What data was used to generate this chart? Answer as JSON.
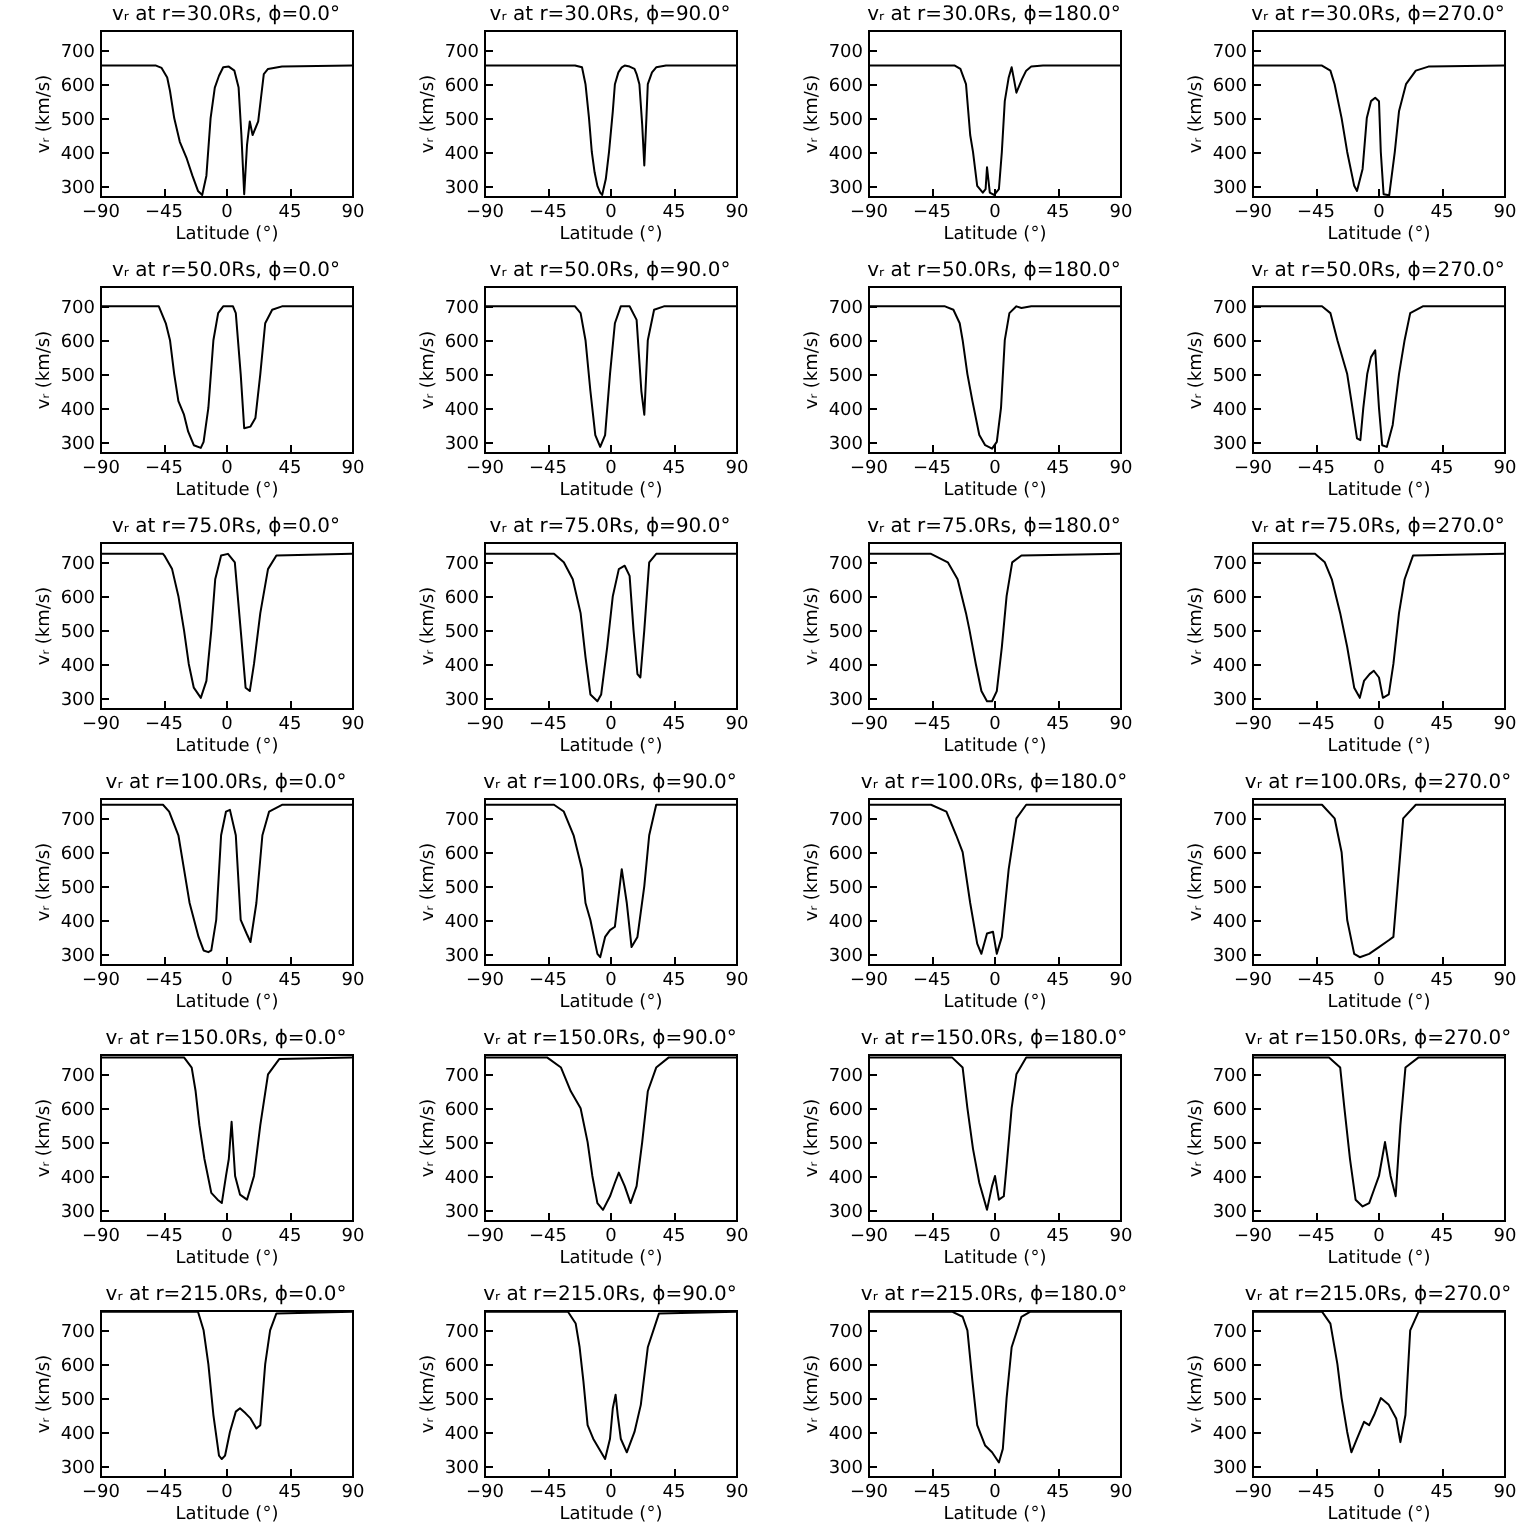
{
  "chart_data": [
    {
      "type": "line",
      "title": "vᵣ at r=30.0Rs, ϕ=0.0°",
      "xlabel": "Latitude (°)",
      "ylabel": "vᵣ (km/s)",
      "xlim": [
        -90,
        90
      ],
      "xticks": [
        -90,
        -45,
        0,
        45,
        90
      ],
      "ylim": [
        270,
        760
      ],
      "yticks": [
        300,
        400,
        500,
        600,
        700
      ],
      "x": [
        -90,
        -50,
        -46,
        -42,
        -40,
        -37,
        -33,
        -28,
        -24,
        -20,
        -17,
        -14,
        -11,
        -8,
        -5,
        -2,
        2,
        6,
        9,
        11,
        13,
        15,
        17,
        19,
        21,
        23,
        25,
        27,
        30,
        40,
        90
      ],
      "series": [
        {
          "color": "#000000",
          "values": [
            655,
            655,
            648,
            620,
            580,
            500,
            430,
            380,
            330,
            285,
            273,
            330,
            500,
            590,
            625,
            650,
            652,
            640,
            590,
            450,
            275,
            420,
            490,
            450,
            470,
            490,
            560,
            630,
            645,
            652,
            655
          ]
        }
      ]
    },
    {
      "type": "line",
      "title": "vᵣ at r=30.0Rs, ϕ=90.0°",
      "xlabel": "Latitude (°)",
      "ylabel": "vᵣ (km/s)",
      "xlim": [
        -90,
        90
      ],
      "xticks": [
        -90,
        -45,
        0,
        45,
        90
      ],
      "ylim": [
        270,
        760
      ],
      "yticks": [
        300,
        400,
        500,
        600,
        700
      ],
      "x": [
        -90,
        -25,
        -20,
        -17.5,
        -15,
        -13,
        -11,
        -9,
        -7,
        -5.6,
        -3,
        -0.7,
        2,
        3.5,
        6,
        8.4,
        10.5,
        14,
        17.5,
        19,
        21,
        23,
        24.5,
        26,
        27,
        30,
        33,
        40,
        90
      ],
      "series": [
        {
          "color": "#000000",
          "values": [
            655,
            655,
            650,
            600,
            500,
            400,
            340,
            300,
            280,
            273,
            320,
            400,
            520,
            600,
            635,
            650,
            655,
            652,
            645,
            630,
            600,
            480,
            360,
            500,
            600,
            635,
            650,
            655,
            655
          ]
        }
      ]
    },
    {
      "type": "line",
      "title": "vᵣ at r=30.0Rs, ϕ=180.0°",
      "xlabel": "Latitude (°)",
      "ylabel": "vᵣ (km/s)",
      "xlim": [
        -90,
        90
      ],
      "xticks": [
        -90,
        -45,
        0,
        45,
        90
      ],
      "ylim": [
        270,
        760
      ],
      "yticks": [
        300,
        400,
        500,
        600,
        700
      ],
      "x": [
        -90,
        -28,
        -24,
        -20,
        -17,
        -15,
        -12,
        -8,
        -6,
        -5,
        -3,
        0,
        3.5,
        5.6,
        7.7,
        10.5,
        12.6,
        14,
        16,
        18,
        20,
        23,
        26.6,
        35,
        90
      ],
      "series": [
        {
          "color": "#000000",
          "values": [
            655,
            655,
            645,
            600,
            450,
            400,
            300,
            280,
            290,
            355,
            280,
            273,
            290,
            400,
            550,
            620,
            650,
            620,
            575,
            595,
            615,
            640,
            652,
            655,
            655
          ]
        }
      ]
    },
    {
      "type": "line",
      "title": "vᵣ at r=30.0Rs, ϕ=270.0°",
      "xlabel": "Latitude (°)",
      "ylabel": "vᵣ (km/s)",
      "xlim": [
        -90,
        90
      ],
      "xticks": [
        -90,
        -45,
        0,
        45,
        90
      ],
      "ylim": [
        270,
        760
      ],
      "yticks": [
        300,
        400,
        500,
        600,
        700
      ],
      "x": [
        -90,
        -40,
        -34,
        -31,
        -26,
        -22,
        -17,
        -15,
        -11,
        -8,
        -5,
        -2,
        0.7,
        2,
        4,
        8,
        12,
        15,
        20,
        27,
        36,
        90
      ],
      "series": [
        {
          "color": "#000000",
          "values": [
            655,
            655,
            640,
            600,
            500,
            400,
            300,
            285,
            350,
            500,
            550,
            560,
            550,
            400,
            275,
            272,
            400,
            520,
            600,
            640,
            652,
            655
          ]
        }
      ]
    },
    {
      "type": "line",
      "title": "vᵣ at r=50.0Rs, ϕ=0.0°",
      "xlabel": "Latitude (°)",
      "ylabel": "vᵣ (km/s)",
      "xlim": [
        -90,
        90
      ],
      "xticks": [
        -90,
        -45,
        0,
        45,
        90
      ],
      "ylim": [
        270,
        760
      ],
      "yticks": [
        300,
        400,
        500,
        600,
        700
      ],
      "x": [
        -90,
        -48,
        -43,
        -40,
        -37,
        -34,
        -30,
        -27,
        -23,
        -18,
        -16,
        -12.6,
        -9,
        -5.6,
        -2,
        5,
        7,
        10.5,
        13,
        17.5,
        21,
        24.5,
        28,
        33,
        40,
        90
      ],
      "series": [
        {
          "color": "#000000",
          "values": [
            700,
            700,
            650,
            600,
            500,
            420,
            380,
            330,
            290,
            282,
            300,
            400,
            600,
            680,
            700,
            700,
            680,
            500,
            340,
            345,
            370,
            500,
            650,
            690,
            700,
            700
          ]
        }
      ]
    },
    {
      "type": "line",
      "title": "vᵣ at r=50.0Rs, ϕ=90.0°",
      "xlabel": "Latitude (°)",
      "ylabel": "vᵣ (km/s)",
      "xlim": [
        -90,
        90
      ],
      "xticks": [
        -90,
        -45,
        0,
        45,
        90
      ],
      "ylim": [
        270,
        760
      ],
      "yticks": [
        300,
        400,
        500,
        600,
        700
      ],
      "x": [
        -90,
        -25,
        -21,
        -17.5,
        -14,
        -10.5,
        -7,
        -3.5,
        0,
        3.5,
        7.7,
        14,
        19,
        22.4,
        24.5,
        27,
        31.5,
        38.5,
        90
      ],
      "series": [
        {
          "color": "#000000",
          "values": [
            700,
            700,
            680,
            600,
            450,
            320,
            285,
            320,
            500,
            650,
            700,
            700,
            660,
            450,
            380,
            600,
            690,
            700,
            700
          ]
        }
      ]
    },
    {
      "type": "line",
      "title": "vᵣ at r=50.0Rs, ϕ=180.0°",
      "xlabel": "Latitude (°)",
      "ylabel": "vᵣ (km/s)",
      "xlim": [
        -90,
        90
      ],
      "xticks": [
        -90,
        -45,
        0,
        45,
        90
      ],
      "ylim": [
        270,
        760
      ],
      "yticks": [
        300,
        400,
        500,
        600,
        700
      ],
      "x": [
        -90,
        -35,
        -29,
        -24.5,
        -22.4,
        -19,
        -15.4,
        -10.5,
        -6.3,
        -1.4,
        2,
        5,
        7.7,
        11,
        16,
        19.6,
        26.6,
        90
      ],
      "series": [
        {
          "color": "#000000",
          "values": [
            700,
            700,
            690,
            650,
            600,
            500,
            420,
            320,
            290,
            280,
            300,
            400,
            600,
            680,
            700,
            695,
            700,
            700
          ]
        }
      ]
    },
    {
      "type": "line",
      "title": "vᵣ at r=50.0Rs, ϕ=270.0°",
      "xlabel": "Latitude (°)",
      "ylabel": "vᵣ (km/s)",
      "xlim": [
        -90,
        90
      ],
      "xticks": [
        -90,
        -45,
        0,
        45,
        90
      ],
      "ylim": [
        270,
        760
      ],
      "yticks": [
        300,
        400,
        500,
        600,
        700
      ],
      "x": [
        -90,
        -40,
        -34,
        -29,
        -22,
        -19,
        -15,
        -12.6,
        -10.5,
        -7.7,
        -5,
        -2,
        0.7,
        3,
        6.3,
        10.5,
        15,
        19,
        23,
        32,
        90
      ],
      "series": [
        {
          "color": "#000000",
          "values": [
            700,
            700,
            680,
            600,
            500,
            420,
            310,
            305,
            400,
            500,
            550,
            570,
            400,
            290,
            285,
            350,
            500,
            600,
            680,
            700,
            700
          ]
        }
      ]
    },
    {
      "type": "line",
      "title": "vᵣ at r=75.0Rs, ϕ=0.0°",
      "xlabel": "Latitude (°)",
      "ylabel": "vᵣ (km/s)",
      "xlim": [
        -90,
        90
      ],
      "xticks": [
        -90,
        -45,
        0,
        45,
        90
      ],
      "ylim": [
        270,
        760
      ],
      "yticks": [
        300,
        400,
        500,
        600,
        700
      ],
      "x": [
        -90,
        -45,
        -44,
        -38.5,
        -34,
        -30,
        -26.6,
        -23,
        -18,
        -14,
        -10.5,
        -7.7,
        -3.5,
        1.4,
        6.3,
        10.5,
        14,
        17,
        20,
        24.5,
        30,
        36,
        90
      ],
      "series": [
        {
          "color": "#000000",
          "values": [
            725,
            725,
            720,
            680,
            600,
            500,
            400,
            330,
            300,
            350,
            500,
            650,
            720,
            725,
            700,
            500,
            330,
            320,
            400,
            550,
            680,
            720,
            725
          ]
        }
      ]
    },
    {
      "type": "line",
      "title": "vᵣ at r=75.0Rs, ϕ=90.0°",
      "xlabel": "Latitude (°)",
      "ylabel": "vᵣ (km/s)",
      "xlim": [
        -90,
        90
      ],
      "xticks": [
        -90,
        -45,
        0,
        45,
        90
      ],
      "ylim": [
        270,
        760
      ],
      "yticks": [
        300,
        400,
        500,
        600,
        700
      ],
      "x": [
        -90,
        -40,
        -33,
        -26.6,
        -21,
        -17.5,
        -14,
        -9,
        -6.3,
        -2,
        2,
        6.3,
        10.5,
        14,
        16.8,
        19.6,
        21.7,
        24.5,
        28,
        33,
        90
      ],
      "series": [
        {
          "color": "#000000",
          "values": [
            725,
            725,
            700,
            650,
            550,
            420,
            310,
            290,
            310,
            450,
            600,
            680,
            690,
            660,
            500,
            370,
            360,
            500,
            700,
            725,
            725
          ]
        }
      ]
    },
    {
      "type": "line",
      "title": "vᵣ at r=75.0Rs, ϕ=180.0°",
      "xlabel": "Latitude (°)",
      "ylabel": "vᵣ (km/s)",
      "xlim": [
        -90,
        90
      ],
      "xticks": [
        -90,
        -45,
        0,
        45,
        90
      ],
      "ylim": [
        270,
        760
      ],
      "yticks": [
        300,
        400,
        500,
        600,
        700
      ],
      "x": [
        -90,
        -45,
        -33,
        -26,
        -20,
        -17.5,
        -13,
        -9,
        -5,
        -1.4,
        2,
        5.6,
        9,
        13,
        19.6,
        90
      ],
      "series": [
        {
          "color": "#000000",
          "values": [
            725,
            725,
            700,
            650,
            550,
            500,
            400,
            320,
            290,
            290,
            320,
            450,
            600,
            700,
            720,
            725
          ]
        }
      ]
    },
    {
      "type": "line",
      "title": "vᵣ at r=75.0Rs, ϕ=270.0°",
      "xlabel": "Latitude (°)",
      "ylabel": "vᵣ (km/s)",
      "xlim": [
        -90,
        90
      ],
      "xticks": [
        -90,
        -45,
        0,
        45,
        90
      ],
      "ylim": [
        270,
        760
      ],
      "yticks": [
        300,
        400,
        500,
        600,
        700
      ],
      "x": [
        -90,
        -45,
        -38,
        -33,
        -27,
        -22,
        -17,
        -13,
        -10,
        -6,
        -3,
        0.7,
        3.5,
        7.7,
        11,
        15,
        19,
        25,
        90
      ],
      "series": [
        {
          "color": "#000000",
          "values": [
            725,
            725,
            700,
            650,
            550,
            450,
            330,
            300,
            350,
            370,
            380,
            360,
            300,
            310,
            400,
            550,
            650,
            720,
            725
          ]
        }
      ]
    },
    {
      "type": "line",
      "title": "vᵣ at r=100.0Rs, ϕ=0.0°",
      "xlabel": "Latitude (°)",
      "ylabel": "vᵣ (km/s)",
      "xlim": [
        -90,
        90
      ],
      "xticks": [
        -90,
        -45,
        0,
        45,
        90
      ],
      "ylim": [
        270,
        760
      ],
      "yticks": [
        300,
        400,
        500,
        600,
        700
      ],
      "x": [
        -90,
        -45,
        -40.6,
        -34,
        -30,
        -26,
        -19.6,
        -16,
        -12.6,
        -10.5,
        -7,
        -3.5,
        0,
        2.8,
        7,
        10.5,
        14.7,
        17.5,
        21.7,
        26,
        30.8,
        40,
        90
      ],
      "series": [
        {
          "color": "#000000",
          "values": [
            740,
            740,
            720,
            650,
            550,
            450,
            350,
            310,
            305,
            310,
            400,
            650,
            720,
            725,
            650,
            400,
            360,
            335,
            450,
            650,
            720,
            740,
            740
          ]
        }
      ]
    },
    {
      "type": "line",
      "title": "vᵣ at r=100.0Rs, ϕ=90.0°",
      "xlabel": "Latitude (°)",
      "ylabel": "vᵣ (km/s)",
      "xlim": [
        -90,
        90
      ],
      "xticks": [
        -90,
        -45,
        0,
        45,
        90
      ],
      "ylim": [
        270,
        760
      ],
      "yticks": [
        300,
        400,
        500,
        600,
        700
      ],
      "x": [
        -90,
        -40,
        -33,
        -26,
        -20,
        -17.5,
        -14,
        -9,
        -7,
        -3.5,
        0,
        3.5,
        8.4,
        12,
        15.4,
        19.6,
        24.5,
        28,
        33,
        90
      ],
      "series": [
        {
          "color": "#000000",
          "values": [
            740,
            740,
            720,
            650,
            550,
            450,
            400,
            300,
            290,
            350,
            370,
            380,
            550,
            450,
            320,
            350,
            500,
            650,
            740,
            740
          ]
        }
      ]
    },
    {
      "type": "line",
      "title": "vᵣ at r=100.0Rs, ϕ=180.0°",
      "xlabel": "Latitude (°)",
      "ylabel": "vᵣ (km/s)",
      "xlim": [
        -90,
        90
      ],
      "xticks": [
        -90,
        -45,
        0,
        45,
        90
      ],
      "ylim": [
        270,
        760
      ],
      "yticks": [
        300,
        400,
        500,
        600,
        700
      ],
      "x": [
        -90,
        -45,
        -34,
        -27,
        -22.4,
        -17,
        -12,
        -9,
        -5,
        -0.7,
        2,
        5.6,
        10.5,
        16,
        23,
        90
      ],
      "series": [
        {
          "color": "#000000",
          "values": [
            740,
            740,
            720,
            650,
            600,
            450,
            330,
            300,
            360,
            365,
            300,
            350,
            550,
            700,
            740,
            740
          ]
        }
      ]
    },
    {
      "type": "line",
      "title": "vᵣ at r=100.0Rs, ϕ=270.0°",
      "xlabel": "Latitude (°)",
      "ylabel": "vᵣ (km/s)",
      "xlim": [
        -90,
        90
      ],
      "xticks": [
        -90,
        -45,
        0,
        45,
        90
      ],
      "ylim": [
        270,
        760
      ],
      "yticks": [
        300,
        400,
        500,
        600,
        700
      ],
      "x": [
        -90,
        -40,
        -31,
        -26,
        -22,
        -17,
        -13,
        -6.3,
        0.7,
        7.7,
        11,
        15,
        18,
        27,
        90
      ],
      "series": [
        {
          "color": "#000000",
          "values": [
            740,
            740,
            700,
            600,
            400,
            300,
            290,
            300,
            320,
            340,
            350,
            550,
            700,
            740,
            740
          ]
        }
      ]
    },
    {
      "type": "line",
      "title": "vᵣ at r=150.0Rs, ϕ=0.0°",
      "xlabel": "Latitude (°)",
      "ylabel": "vᵣ (km/s)",
      "xlim": [
        -90,
        90
      ],
      "xticks": [
        -90,
        -45,
        0,
        45,
        90
      ],
      "ylim": [
        270,
        760
      ],
      "yticks": [
        300,
        400,
        500,
        600,
        700
      ],
      "x": [
        -90,
        -30,
        -24.5,
        -21.7,
        -19,
        -15.4,
        -10.5,
        -6,
        -3,
        0,
        2,
        4,
        6.5,
        10,
        15,
        20,
        24.5,
        30,
        38,
        90
      ],
      "series": [
        {
          "color": "#000000",
          "values": [
            750,
            750,
            720,
            650,
            550,
            450,
            350,
            330,
            320,
            400,
            450,
            560,
            400,
            345,
            330,
            400,
            550,
            700,
            745,
            750
          ]
        }
      ]
    },
    {
      "type": "line",
      "title": "vᵣ at r=150.0Rs, ϕ=90.0°",
      "xlabel": "Latitude (°)",
      "ylabel": "vᵣ (km/s)",
      "xlim": [
        -90,
        90
      ],
      "xticks": [
        -90,
        -45,
        0,
        45,
        90
      ],
      "ylim": [
        270,
        760
      ],
      "yticks": [
        300,
        400,
        500,
        600,
        700
      ],
      "x": [
        -90,
        -45,
        -35,
        -28,
        -21,
        -16,
        -12.6,
        -9,
        -5,
        0,
        3.5,
        6.3,
        10.5,
        14.7,
        19,
        23,
        27,
        33,
        42,
        90
      ],
      "series": [
        {
          "color": "#000000",
          "values": [
            750,
            750,
            720,
            650,
            600,
            500,
            400,
            320,
            300,
            340,
            380,
            410,
            370,
            320,
            370,
            500,
            650,
            720,
            750,
            750
          ]
        }
      ]
    },
    {
      "type": "line",
      "title": "vᵣ at r=150.0Rs, ϕ=180.0°",
      "xlabel": "Latitude (°)",
      "ylabel": "vᵣ (km/s)",
      "xlim": [
        -90,
        90
      ],
      "xticks": [
        -90,
        -45,
        0,
        45,
        90
      ],
      "ylim": [
        270,
        760
      ],
      "yticks": [
        300,
        400,
        500,
        600,
        700
      ],
      "x": [
        -90,
        -30,
        -22.4,
        -19,
        -15,
        -10.5,
        -5,
        -1.4,
        0.7,
        3.5,
        7,
        9,
        12.6,
        16,
        23,
        90
      ],
      "series": [
        {
          "color": "#000000",
          "values": [
            750,
            750,
            720,
            600,
            480,
            380,
            300,
            370,
            400,
            330,
            340,
            430,
            600,
            700,
            750,
            750
          ]
        }
      ]
    },
    {
      "type": "line",
      "title": "vᵣ at r=150.0Rs, ϕ=270.0°",
      "xlabel": "Latitude (°)",
      "ylabel": "vᵣ (km/s)",
      "xlim": [
        -90,
        90
      ],
      "xticks": [
        -90,
        -45,
        0,
        45,
        90
      ],
      "ylim": [
        270,
        760
      ],
      "yticks": [
        300,
        400,
        500,
        600,
        700
      ],
      "x": [
        -90,
        -35,
        -27,
        -24,
        -20,
        -16,
        -11,
        -6.3,
        -2.8,
        0.7,
        5,
        9,
        12.6,
        16,
        19.6,
        29,
        90
      ],
      "series": [
        {
          "color": "#000000",
          "values": [
            750,
            750,
            720,
            600,
            450,
            330,
            310,
            320,
            360,
            400,
            500,
            400,
            340,
            550,
            720,
            750,
            750
          ]
        }
      ]
    },
    {
      "type": "line",
      "title": "vᵣ at r=215.0Rs, ϕ=0.0°",
      "xlabel": "Latitude (°)",
      "ylabel": "vᵣ (km/s)",
      "xlim": [
        -90,
        90
      ],
      "xticks": [
        -90,
        -45,
        0,
        45,
        90
      ],
      "ylim": [
        270,
        760
      ],
      "yticks": [
        300,
        400,
        500,
        600,
        700
      ],
      "x": [
        -90,
        -20,
        -16,
        -12.6,
        -9,
        -5,
        -3,
        -0.7,
        2.8,
        7,
        10,
        14,
        17.5,
        21.7,
        24.5,
        28,
        31.5,
        36,
        90
      ],
      "series": [
        {
          "color": "#000000",
          "values": [
            755,
            755,
            700,
            600,
            450,
            330,
            320,
            330,
            400,
            460,
            470,
            455,
            440,
            410,
            420,
            600,
            700,
            750,
            755
          ]
        }
      ]
    },
    {
      "type": "line",
      "title": "vᵣ at r=215.0Rs, ϕ=90.0°",
      "xlabel": "Latitude (°)",
      "ylabel": "vᵣ (km/s)",
      "xlim": [
        -90,
        90
      ],
      "xticks": [
        -90,
        -45,
        0,
        45,
        90
      ],
      "ylim": [
        270,
        760
      ],
      "yticks": [
        300,
        400,
        500,
        600,
        700
      ],
      "x": [
        -90,
        -30,
        -24.5,
        -21.7,
        -19,
        -16,
        -12,
        -7.7,
        -3.5,
        0,
        2,
        4,
        5.5,
        7.7,
        12,
        17.5,
        22,
        27,
        35,
        90
      ],
      "series": [
        {
          "color": "#000000",
          "values": [
            755,
            755,
            720,
            650,
            550,
            420,
            380,
            350,
            320,
            380,
            470,
            510,
            450,
            380,
            340,
            400,
            480,
            650,
            750,
            755
          ]
        }
      ]
    },
    {
      "type": "line",
      "title": "vᵣ at r=215.0Rs, ϕ=180.0°",
      "xlabel": "Latitude (°)",
      "ylabel": "vᵣ (km/s)",
      "xlim": [
        -90,
        90
      ],
      "xticks": [
        -90,
        -45,
        0,
        45,
        90
      ],
      "ylim": [
        270,
        760
      ],
      "yticks": [
        300,
        400,
        500,
        600,
        700
      ],
      "x": [
        -90,
        -30,
        -22.4,
        -19,
        -15.4,
        -12,
        -6.3,
        -1.4,
        3.5,
        6.3,
        9,
        12.6,
        19.6,
        26,
        90
      ],
      "series": [
        {
          "color": "#000000",
          "values": [
            755,
            755,
            740,
            700,
            550,
            420,
            360,
            340,
            310,
            350,
            500,
            650,
            740,
            755,
            755
          ]
        }
      ]
    },
    {
      "type": "line",
      "title": "vᵣ at r=215.0Rs, ϕ=270.0°",
      "xlabel": "Latitude (°)",
      "ylabel": "vᵣ (km/s)",
      "xlim": [
        -90,
        90
      ],
      "xticks": [
        -90,
        -45,
        0,
        45,
        90
      ],
      "ylim": [
        270,
        760
      ],
      "yticks": [
        300,
        400,
        500,
        600,
        700
      ],
      "x": [
        -90,
        -40,
        -34,
        -29,
        -26,
        -22,
        -19,
        -15,
        -10,
        -6.3,
        -2.8,
        2,
        7.7,
        13,
        16,
        19.6,
        23,
        29,
        90
      ],
      "series": [
        {
          "color": "#000000",
          "values": [
            755,
            755,
            720,
            600,
            500,
            400,
            340,
            380,
            430,
            420,
            450,
            500,
            480,
            440,
            370,
            450,
            700,
            755,
            755
          ]
        }
      ]
    }
  ]
}
